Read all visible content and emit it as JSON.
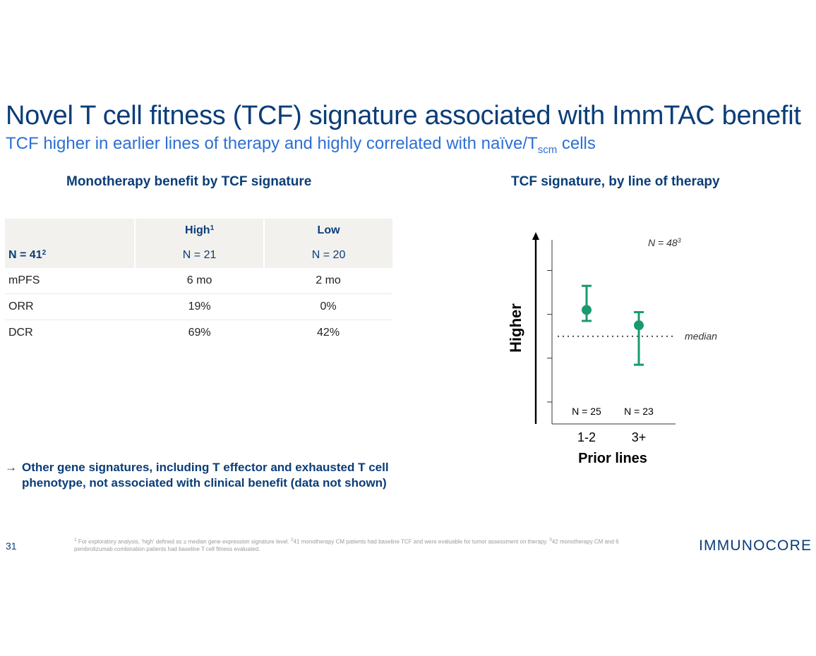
{
  "title": "Novel T cell fitness (TCF) signature associated with ImmTAC benefit",
  "subtitle": {
    "text_before": "TCF higher in earlier lines of therapy and highly correlated with naïve/T",
    "subscript": "scm",
    "text_after": " cells"
  },
  "left_section": {
    "heading": "Monotherapy benefit by TCF signature",
    "table": {
      "header": {
        "high_label": "High",
        "high_footnote": "1",
        "low_label": "Low",
        "n_total_label": "N = 41",
        "n_total_footnote": "2",
        "high_n": "N = 21",
        "low_n": "N = 20"
      },
      "rows": [
        {
          "metric": "mPFS",
          "high": "6 mo",
          "low": "2 mo"
        },
        {
          "metric": "ORR",
          "high": "19%",
          "low": "0%"
        },
        {
          "metric": "DCR",
          "high": "69%",
          "low": "42%"
        }
      ]
    },
    "bullet": {
      "arrow": "→",
      "part1": "Other gene signatures, including ",
      "part2": "T",
      "part3": " effector and exhausted ",
      "part4": "T",
      "part5": " cell phenotype, not associated with clinical benefit (data not shown)"
    }
  },
  "right_section": {
    "heading": "TCF signature, by line of therapy"
  },
  "chart_data": {
    "type": "scatter",
    "categories": [
      "1-2",
      "3+"
    ],
    "points": [
      {
        "x": "1-2",
        "y": 0.6,
        "low": 0.35,
        "high": 1.15,
        "n_label": "N = 25"
      },
      {
        "x": "3+",
        "y": 0.25,
        "low": -0.65,
        "high": 0.55,
        "n_label": "N = 23"
      }
    ],
    "median": 0.0,
    "median_label": "median",
    "y_ticks": [
      -1.5,
      -0.5,
      0.5,
      1.5
    ],
    "ylim": [
      -2,
      2.2
    ],
    "xlabel": "Prior lines",
    "ylabel": "Higher",
    "n_note": "N = 48",
    "n_note_footnote": "3",
    "color": "#1a9a6c",
    "grid": false
  },
  "footer": {
    "page_number": "31",
    "footnote_1_mark": "1",
    "footnote_1": " For exploratory analysis, 'high' defined as ≥ median gene expression signature level. ",
    "footnote_2_mark": "2",
    "footnote_2": "41 monotherapy CM patients had baseline TCF and were evaluable for tumor assessment on therapy. ",
    "footnote_3_mark": "3",
    "footnote_3": "42 monotherapy CM and 6 pembrolizumab combination patients had baseline T cell fitness evaluated.",
    "logo_text": "IMMUNOCORE"
  }
}
